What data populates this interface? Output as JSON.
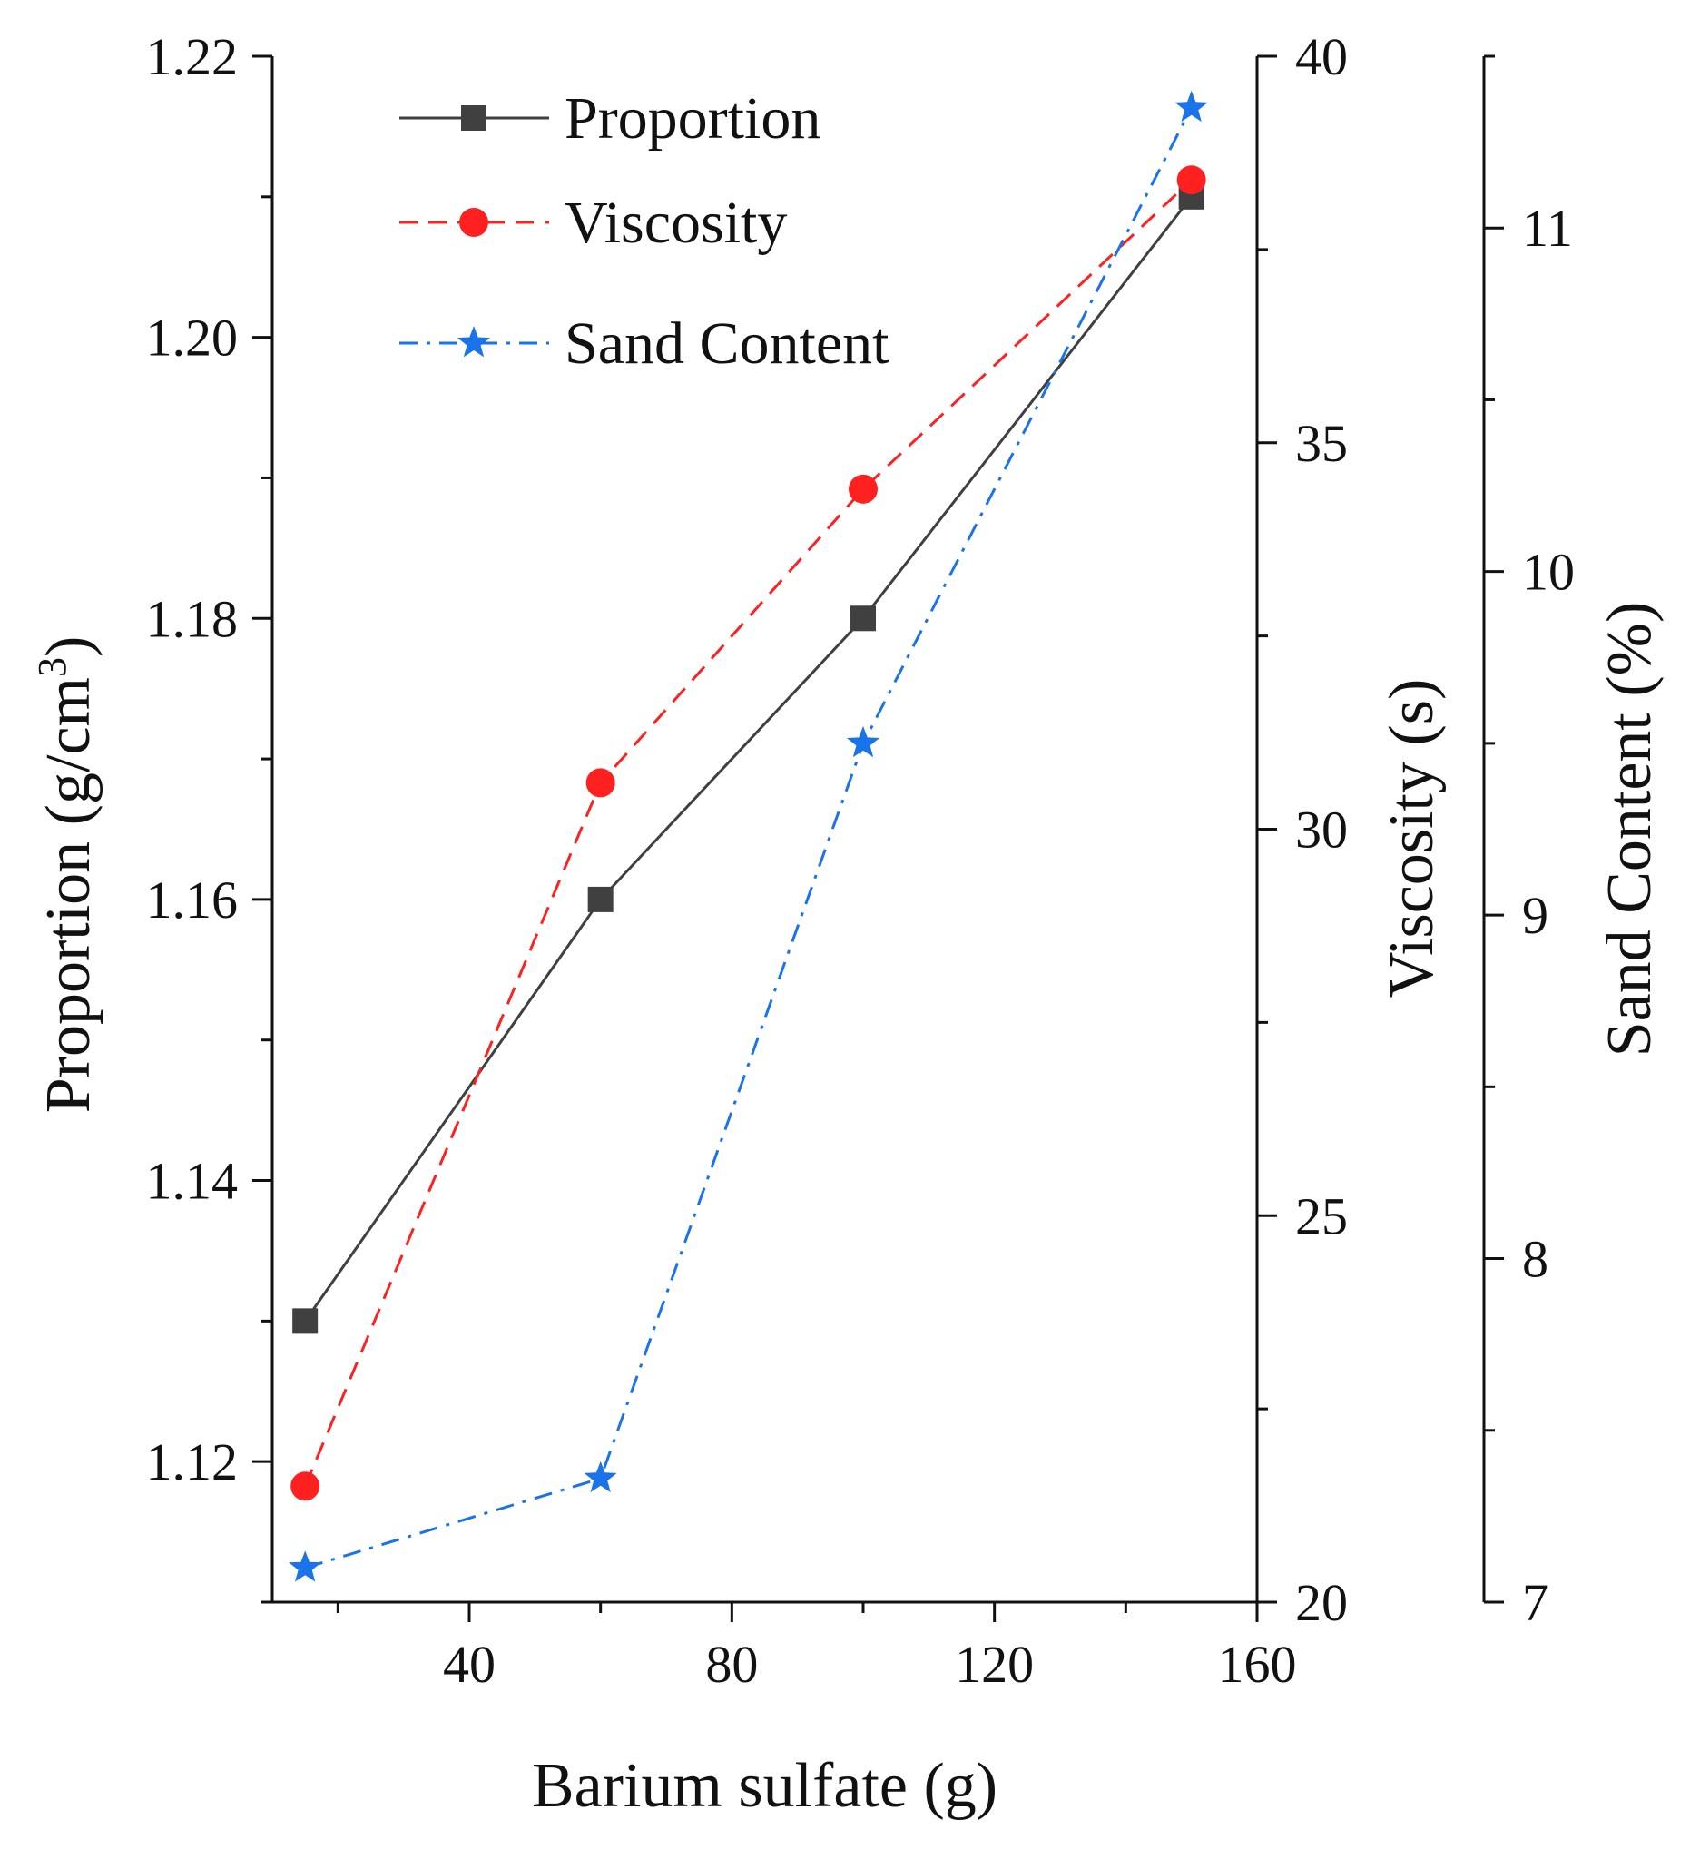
{
  "chart_data": {
    "type": "line",
    "x": [
      15,
      60,
      100,
      150
    ],
    "xlabel": "Barium sulfate (g)",
    "xlim": [
      10,
      160
    ],
    "xticks": [
      40,
      80,
      120,
      160
    ],
    "axes": [
      {
        "id": "proportion",
        "label": "Proportion (g/cm",
        "label_sup": "3",
        "label_close": ")",
        "range": [
          1.11,
          1.22
        ],
        "ticks": [
          "1.12",
          "1.14",
          "1.16",
          "1.18",
          "1.20",
          "1.22"
        ],
        "tick_values": [
          1.12,
          1.14,
          1.16,
          1.18,
          1.2,
          1.22
        ],
        "side": "left"
      },
      {
        "id": "viscosity",
        "label": "Viscosity (s)",
        "range": [
          20,
          40
        ],
        "ticks": [
          "20",
          "25",
          "30",
          "35",
          "40"
        ],
        "tick_values": [
          20,
          25,
          30,
          35,
          40
        ],
        "side": "right"
      },
      {
        "id": "sand",
        "label": "Sand Content (%)",
        "range": [
          7,
          11.5
        ],
        "ticks": [
          "7",
          "8",
          "9",
          "10",
          "11"
        ],
        "tick_values": [
          7,
          8,
          9,
          10,
          11
        ],
        "side": "right-offset"
      }
    ],
    "series": [
      {
        "name": "Proportion",
        "axis": "proportion",
        "values": [
          1.13,
          1.16,
          1.18,
          1.21
        ],
        "color": "#404040",
        "marker": "square",
        "dash": "solid"
      },
      {
        "name": "Viscosity",
        "axis": "viscosity",
        "values": [
          21.5,
          30.6,
          34.4,
          38.4
        ],
        "color": "#ff2020",
        "marker": "circle",
        "dash": "dash"
      },
      {
        "name": "Sand Content",
        "axis": "sand",
        "values": [
          7.1,
          7.36,
          9.5,
          11.35
        ],
        "color": "#1a73e8",
        "marker": "star",
        "dash": "dashdot"
      }
    ],
    "legend_position": "top-left"
  }
}
